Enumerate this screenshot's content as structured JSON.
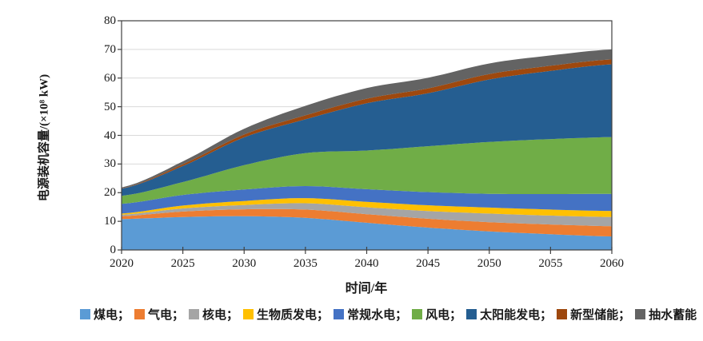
{
  "figure": {
    "background": "#ffffff",
    "axis_color": "#404040",
    "gridline_color": "#d9d9d9",
    "text_color": "#1a1a1a"
  },
  "chart_data": {
    "type": "area",
    "stacked": true,
    "title": "",
    "xlabel": "时间/年",
    "ylabel": "电源装机容量/(×10⁸ kW)",
    "x": [
      2020,
      2025,
      2030,
      2035,
      2040,
      2045,
      2050,
      2055,
      2060
    ],
    "xticks": [
      2020,
      2025,
      2030,
      2035,
      2040,
      2045,
      2050,
      2055,
      2060
    ],
    "yticks": [
      0,
      10,
      20,
      30,
      40,
      50,
      60,
      70,
      80
    ],
    "xlim": [
      2020,
      2060
    ],
    "ylim": [
      0,
      80
    ],
    "grid": true,
    "legend_position": "bottom",
    "legend_separator": "；",
    "series": [
      {
        "name": "煤电",
        "color": "#5B9BD5",
        "values": [
          10.8,
          11.5,
          11.8,
          11.2,
          9.5,
          7.8,
          6.5,
          5.5,
          4.7
        ]
      },
      {
        "name": "气电",
        "color": "#ED7D31",
        "values": [
          1.0,
          1.9,
          2.4,
          2.9,
          3.0,
          3.1,
          3.2,
          3.4,
          3.6
        ]
      },
      {
        "name": "核电",
        "color": "#A5A5A5",
        "values": [
          0.5,
          1.1,
          1.5,
          2.2,
          2.4,
          2.7,
          3.0,
          3.1,
          3.2
        ]
      },
      {
        "name": "生物质发电",
        "color": "#FFC000",
        "values": [
          0.4,
          1.0,
          1.4,
          1.8,
          1.9,
          2.0,
          2.1,
          2.1,
          2.1
        ]
      },
      {
        "name": "常规水电",
        "color": "#4472C4",
        "values": [
          3.4,
          3.7,
          4.0,
          4.2,
          4.4,
          4.6,
          4.8,
          5.4,
          6.0
        ]
      },
      {
        "name": "风电",
        "color": "#70AD47",
        "values": [
          2.8,
          4.5,
          8.5,
          11.5,
          13.5,
          16.0,
          18.1,
          19.2,
          19.8
        ]
      },
      {
        "name": "太阳能发电",
        "color": "#255E91",
        "values": [
          2.5,
          5.6,
          9.7,
          11.8,
          16.5,
          18.5,
          21.8,
          23.8,
          25.4
        ]
      },
      {
        "name": "新型储能",
        "color": "#9E480E",
        "values": [
          0.1,
          0.6,
          1.0,
          1.4,
          1.6,
          1.7,
          1.9,
          1.8,
          1.7
        ]
      },
      {
        "name": "抽水蓄能",
        "color": "#636363",
        "values": [
          0.3,
          1.0,
          2.0,
          3.3,
          3.7,
          3.7,
          3.7,
          3.6,
          3.5
        ]
      }
    ]
  }
}
